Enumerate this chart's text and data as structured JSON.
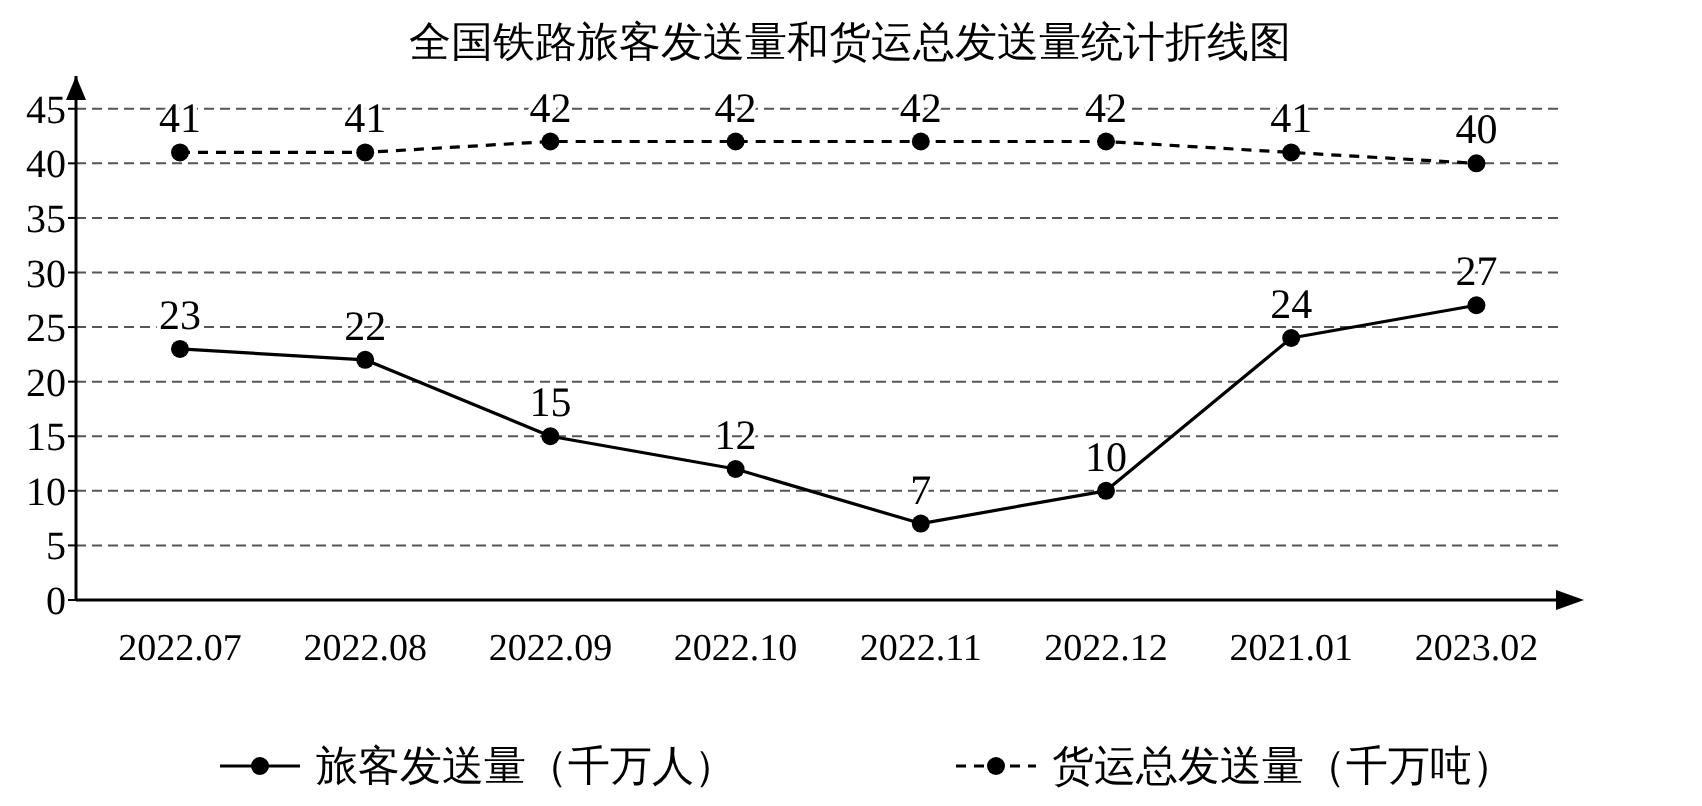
{
  "chart_data": {
    "type": "line",
    "title": "全国铁路旅客发送量和货运总发送量统计折线图",
    "categories": [
      "2022.07",
      "2022.08",
      "2022.09",
      "2022.10",
      "2022.11",
      "2022.12",
      "2021.01",
      "2023.02"
    ],
    "series": [
      {
        "name": "旅客发送量（千万人）",
        "color": "#000000",
        "values": [
          23,
          22,
          15,
          12,
          7,
          10,
          24,
          27
        ],
        "line_style": "solid"
      },
      {
        "name": "货运总发送量（千万吨）",
        "color": "#000000",
        "values": [
          41,
          41,
          42,
          42,
          42,
          42,
          41,
          40
        ],
        "line_style": "dashed"
      }
    ],
    "ylim": [
      0,
      48
    ],
    "yticks": [
      0,
      5,
      10,
      15,
      20,
      25,
      30,
      35,
      40,
      45
    ],
    "grid": "y",
    "legend": "bottom",
    "marker": "circle",
    "data_labels": true
  }
}
